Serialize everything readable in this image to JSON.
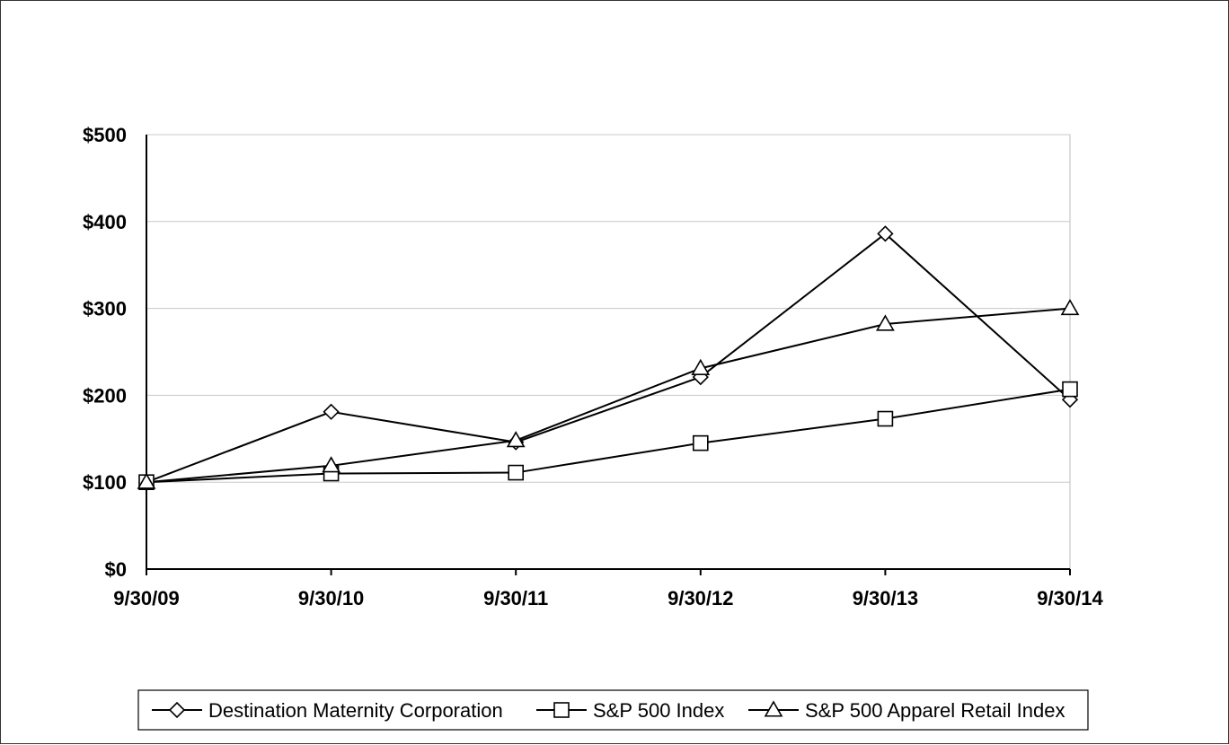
{
  "chart_data": {
    "type": "line",
    "title": "",
    "xlabel": "",
    "ylabel": "",
    "categories": [
      "9/30/09",
      "9/30/10",
      "9/30/11",
      "9/30/12",
      "9/30/13",
      "9/30/14"
    ],
    "ylim": [
      0,
      500
    ],
    "yticks": [
      0,
      100,
      200,
      300,
      400,
      500
    ],
    "ytick_labels": [
      "$0",
      "$100",
      "$200",
      "$300",
      "$400",
      "$500"
    ],
    "grid": true,
    "legend_position": "bottom",
    "series": [
      {
        "name": "Destination Maternity Corporation",
        "marker": "diamond",
        "values": [
          100,
          181,
          146,
          221,
          386,
          195
        ]
      },
      {
        "name": "S&P 500 Index",
        "marker": "square",
        "values": [
          100,
          110,
          111,
          145,
          173,
          207
        ]
      },
      {
        "name": "S&P 500 Apparel Retail Index",
        "marker": "triangle",
        "values": [
          100,
          119,
          148,
          231,
          282,
          300
        ]
      }
    ]
  }
}
